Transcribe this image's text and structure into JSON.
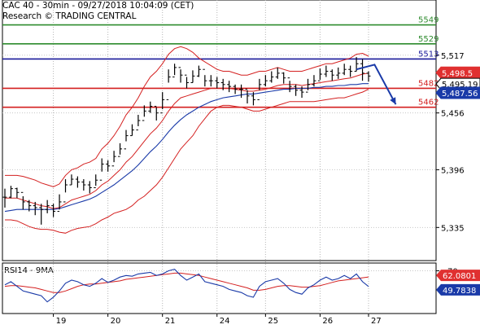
{
  "header": {
    "title": "CAC 40 - 30min - 09/27/2018 10:04:09 (CET)",
    "source": "Research © TRADING CENTRAL"
  },
  "chart_data": [
    {
      "type": "line",
      "ylim": [
        5300,
        5565
      ],
      "y_ticks": [
        "5,517",
        "5,456",
        "5,396",
        "5,335"
      ],
      "y_tick_values": [
        5517,
        5456,
        5396,
        5335
      ],
      "x_labels": [
        "19",
        "20",
        "21",
        "24",
        "25",
        "26",
        "27"
      ],
      "x_label_index": [
        8,
        17,
        26,
        35,
        43,
        52,
        60
      ],
      "levels": [
        {
          "label": "5549",
          "value": 5549,
          "color": "#2e8b2e"
        },
        {
          "label": "5529",
          "value": 5529,
          "color": "#2e8b2e"
        },
        {
          "label": "5513",
          "value": 5513,
          "color": "#1a1a9a"
        },
        {
          "label": "5482",
          "value": 5482,
          "color": "#d42020"
        },
        {
          "label": "5462",
          "value": 5462,
          "color": "#d42020"
        }
      ],
      "price_badges": [
        {
          "label": "5,498.5",
          "value": 5498.5,
          "color": "#e03030",
          "text_color": "#ffffff"
        },
        {
          "label": "5,495.19",
          "value": 5495.19,
          "color": "#ffffff",
          "text_color": "#000000"
        },
        {
          "label": "5,487.56",
          "value": 5487.56,
          "color": "#1a3aa8",
          "text_color": "#ffffff"
        }
      ],
      "close": [
        5367,
        5376,
        5372,
        5362,
        5358,
        5356,
        5354,
        5358,
        5352,
        5362,
        5380,
        5386,
        5383,
        5380,
        5377,
        5385,
        5402,
        5400,
        5410,
        5418,
        5432,
        5438,
        5448,
        5458,
        5463,
        5456,
        5470,
        5494,
        5504,
        5496,
        5488,
        5495,
        5502,
        5490,
        5490,
        5488,
        5486,
        5484,
        5481,
        5481,
        5474,
        5470,
        5486,
        5490,
        5494,
        5498,
        5493,
        5484,
        5480,
        5478,
        5486,
        5490,
        5497,
        5500,
        5496,
        5498,
        5502,
        5500,
        5508,
        5498,
        5495
      ],
      "high": [
        5376,
        5379,
        5377,
        5368,
        5364,
        5362,
        5360,
        5364,
        5360,
        5370,
        5386,
        5391,
        5389,
        5386,
        5384,
        5391,
        5408,
        5406,
        5416,
        5424,
        5438,
        5444,
        5454,
        5464,
        5468,
        5462,
        5478,
        5502,
        5508,
        5502,
        5494,
        5501,
        5506,
        5496,
        5496,
        5494,
        5492,
        5490,
        5486,
        5486,
        5480,
        5478,
        5492,
        5496,
        5500,
        5504,
        5499,
        5490,
        5486,
        5484,
        5492,
        5496,
        5503,
        5506,
        5502,
        5504,
        5508,
        5506,
        5515,
        5513,
        5500
      ],
      "low": [
        5356,
        5366,
        5366,
        5354,
        5352,
        5348,
        5338,
        5350,
        5346,
        5354,
        5372,
        5380,
        5377,
        5374,
        5371,
        5379,
        5394,
        5394,
        5404,
        5412,
        5426,
        5432,
        5442,
        5452,
        5456,
        5448,
        5460,
        5488,
        5496,
        5488,
        5482,
        5488,
        5494,
        5484,
        5484,
        5482,
        5480,
        5478,
        5476,
        5472,
        5466,
        5464,
        5480,
        5484,
        5488,
        5492,
        5487,
        5478,
        5474,
        5472,
        5480,
        5484,
        5491,
        5494,
        5490,
        5492,
        5496,
        5494,
        5500,
        5490,
        5489
      ],
      "bb_upper": [
        5390,
        5390,
        5390,
        5389,
        5387,
        5385,
        5382,
        5380,
        5378,
        5381,
        5390,
        5396,
        5398,
        5402,
        5404,
        5408,
        5418,
        5424,
        5432,
        5442,
        5454,
        5462,
        5472,
        5484,
        5494,
        5500,
        5508,
        5518,
        5524,
        5526,
        5524,
        5520,
        5514,
        5510,
        5506,
        5502,
        5500,
        5500,
        5498,
        5496,
        5496,
        5498,
        5500,
        5500,
        5502,
        5504,
        5502,
        5500,
        5500,
        5500,
        5502,
        5504,
        5506,
        5508,
        5508,
        5510,
        5512,
        5514,
        5518,
        5519,
        5516
      ],
      "bb_mid": [
        5366,
        5366,
        5366,
        5364,
        5362,
        5360,
        5358,
        5357,
        5355,
        5356,
        5360,
        5364,
        5366,
        5368,
        5370,
        5374,
        5380,
        5384,
        5390,
        5396,
        5404,
        5410,
        5418,
        5426,
        5434,
        5440,
        5448,
        5458,
        5466,
        5472,
        5474,
        5476,
        5478,
        5480,
        5482,
        5482,
        5482,
        5482,
        5481,
        5480,
        5479,
        5479,
        5480,
        5481,
        5483,
        5485,
        5486,
        5486,
        5486,
        5485,
        5486,
        5487,
        5488,
        5489,
        5490,
        5491,
        5492,
        5493,
        5495,
        5497,
        5498
      ],
      "bb_lower": [
        5343,
        5343,
        5342,
        5339,
        5336,
        5334,
        5333,
        5333,
        5332,
        5330,
        5329,
        5332,
        5334,
        5335,
        5336,
        5339,
        5343,
        5346,
        5350,
        5352,
        5354,
        5358,
        5364,
        5368,
        5374,
        5380,
        5388,
        5398,
        5408,
        5418,
        5425,
        5432,
        5442,
        5450,
        5458,
        5462,
        5464,
        5464,
        5463,
        5462,
        5460,
        5458,
        5458,
        5460,
        5462,
        5464,
        5466,
        5468,
        5468,
        5468,
        5468,
        5468,
        5469,
        5470,
        5471,
        5472,
        5472,
        5474,
        5476,
        5478,
        5481
      ],
      "ma_blue": [
        5352,
        5353,
        5354,
        5354,
        5354,
        5354,
        5354,
        5354,
        5354,
        5355,
        5357,
        5359,
        5361,
        5363,
        5365,
        5368,
        5372,
        5376,
        5380,
        5385,
        5390,
        5395,
        5401,
        5408,
        5415,
        5421,
        5428,
        5436,
        5443,
        5449,
        5454,
        5458,
        5462,
        5465,
        5468,
        5470,
        5472,
        5473,
        5474,
        5475,
        5476,
        5476,
        5477,
        5478,
        5479,
        5480,
        5481,
        5481,
        5482,
        5482,
        5482,
        5483,
        5483,
        5484,
        5484,
        5485,
        5485,
        5486,
        5486,
        5487,
        5487
      ],
      "forecast": [
        {
          "index": 58,
          "value": 5502
        },
        {
          "index": 61,
          "value": 5507
        },
        {
          "index": 64.5,
          "value": 5465
        }
      ]
    },
    {
      "type": "line",
      "title": "RSI14 - 9MA",
      "ylim": [
        15,
        80
      ],
      "y_ticks": [
        "70"
      ],
      "y_tick_values": [
        70
      ],
      "rsi_badges": [
        {
          "label": "62.0801",
          "value": 62.08,
          "color": "#e03030",
          "text_color": "#ffffff"
        },
        {
          "label": "49.7838",
          "value": 49.78,
          "color": "#1a3aa8",
          "text_color": "#ffffff"
        }
      ],
      "rsi": [
        52,
        56,
        50,
        44,
        42,
        40,
        38,
        30,
        36,
        44,
        54,
        58,
        56,
        52,
        50,
        54,
        60,
        55,
        58,
        62,
        64,
        63,
        66,
        67,
        68,
        64,
        66,
        70,
        72,
        64,
        58,
        62,
        66,
        56,
        54,
        52,
        50,
        46,
        44,
        42,
        38,
        36,
        50,
        56,
        58,
        60,
        54,
        46,
        42,
        40,
        48,
        52,
        58,
        62,
        58,
        60,
        64,
        60,
        66,
        56,
        49.78
      ],
      "ma": [
        50,
        51,
        51,
        50,
        49,
        48,
        46,
        44,
        42,
        42,
        44,
        47,
        50,
        52,
        53,
        53,
        54,
        55,
        56,
        57,
        59,
        60,
        61,
        62,
        63,
        64,
        65,
        66,
        67,
        67,
        66,
        65,
        64,
        62,
        60,
        58,
        56,
        54,
        52,
        50,
        48,
        45,
        45,
        46,
        48,
        50,
        51,
        51,
        50,
        49,
        49,
        50,
        51,
        53,
        55,
        57,
        58,
        59,
        60,
        61,
        62.08
      ]
    }
  ]
}
